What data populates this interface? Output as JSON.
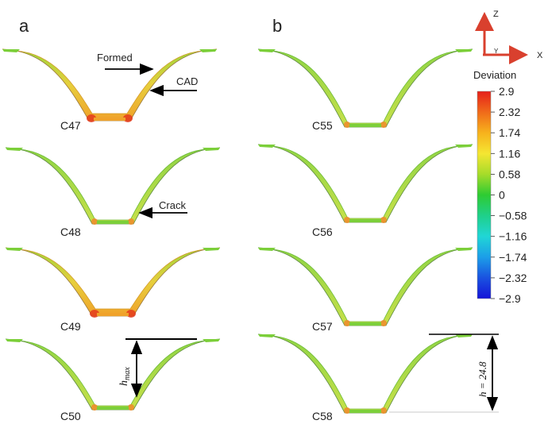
{
  "panels": {
    "a": {
      "label": "a",
      "profiles": [
        {
          "id": "C47",
          "label": "C47",
          "state": "warm"
        },
        {
          "id": "C48",
          "label": "C48",
          "state": "cool"
        },
        {
          "id": "C49",
          "label": "C49",
          "state": "warm"
        },
        {
          "id": "C50",
          "label": "C50",
          "state": "cool"
        }
      ]
    },
    "b": {
      "label": "b",
      "profiles": [
        {
          "id": "C55",
          "label": "C55",
          "state": "cool"
        },
        {
          "id": "C56",
          "label": "C56",
          "state": "cool"
        },
        {
          "id": "C57",
          "label": "C57",
          "state": "cool"
        },
        {
          "id": "C58",
          "label": "C58",
          "state": "cool"
        }
      ]
    }
  },
  "annotations": {
    "formed": "Formed",
    "cad": "CAD",
    "crack": "Crack",
    "hmax_base": "h",
    "hmax_sub": "max",
    "h_value": "h = 24.8"
  },
  "axes": {
    "z": "Z",
    "x": "X",
    "y": "Y"
  },
  "colorbar": {
    "title": "Deviation",
    "ticks": [
      "2.9",
      "2.32",
      "1.74",
      "1.16",
      "0.58",
      "0",
      "−0.58",
      "−1.16",
      "−1.74",
      "−2.32",
      "−2.9"
    ],
    "colors": [
      "#e6201a",
      "#f06a1a",
      "#f7b21c",
      "#f5e632",
      "#a6dc2a",
      "#2ecb32",
      "#1fd08a",
      "#20d6d6",
      "#1c9ee8",
      "#1a52e0",
      "#1414d8"
    ]
  },
  "palette": {
    "green": "#7ccf3a",
    "yellow": "#e8c93a",
    "orange": "#f08a2a",
    "red": "#e43a1c",
    "axis": "#d9402e"
  }
}
